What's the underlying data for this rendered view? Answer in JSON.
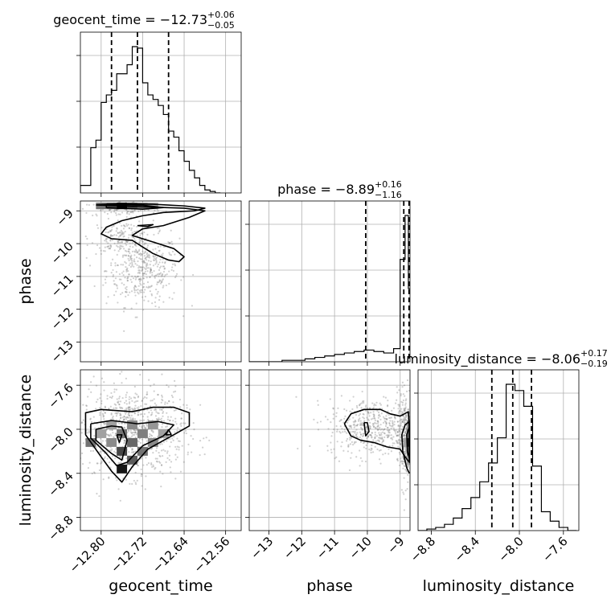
{
  "chart_data": {
    "type": "corner",
    "parameters": [
      "geocent_time",
      "phase",
      "luminosity_distance"
    ],
    "axis_labels": {
      "x": [
        "geocent_time",
        "phase",
        "luminosity_distance"
      ],
      "y": [
        "phase",
        "luminosity_distance"
      ]
    },
    "titles": [
      {
        "param": "geocent_time",
        "text": "geocent_time = −12.73",
        "plus": "+0.06",
        "minus": "−0.05"
      },
      {
        "param": "phase",
        "text": "phase = −8.89",
        "plus": "+0.16",
        "minus": "−1.16"
      },
      {
        "param": "luminosity_distance",
        "text": "luminosity_distance = −8.06",
        "plus": "+0.17",
        "minus": "−0.19"
      }
    ],
    "ranges": {
      "geocent_time": [
        -12.84,
        -12.53
      ],
      "phase": [
        -13.6,
        -8.7
      ],
      "luminosity_distance": [
        -8.92,
        -7.46
      ]
    },
    "ticks": {
      "geocent_time": [
        -12.8,
        -12.72,
        -12.64,
        -12.56
      ],
      "phase": [
        -13,
        -12,
        -11,
        -10,
        -9
      ],
      "luminosity_distance": [
        -8.8,
        -8.4,
        -8.0,
        -7.6
      ]
    },
    "tick_labels": {
      "geocent_time": [
        "−12.80",
        "−12.72",
        "−12.64",
        "−12.56"
      ],
      "phase": [
        "−13",
        "−12",
        "−11",
        "−10",
        "−9"
      ],
      "luminosity_distance": [
        "−8.8",
        "−8.4",
        "−8.0",
        "−7.6"
      ]
    },
    "quantiles": {
      "geocent_time": [
        -12.78,
        -12.73,
        -12.67
      ],
      "phase": [
        -10.05,
        -8.89,
        -8.73
      ],
      "luminosity_distance": [
        -8.25,
        -8.06,
        -7.89
      ]
    },
    "histograms": {
      "geocent_time": {
        "edges": [
          -12.84,
          -12.83,
          -12.82,
          -12.81,
          -12.8,
          -12.79,
          -12.78,
          -12.77,
          -12.76,
          -12.75,
          -12.74,
          -12.73,
          -12.72,
          -12.71,
          -12.7,
          -12.69,
          -12.68,
          -12.67,
          -12.66,
          -12.65,
          -12.64,
          -12.63,
          -12.62,
          -12.61,
          -12.6,
          -12.59,
          -12.58,
          -12.57
        ],
        "counts": [
          0.05,
          0.05,
          0.3,
          0.35,
          0.6,
          0.65,
          0.68,
          0.79,
          0.79,
          0.85,
          0.97,
          0.96,
          0.73,
          0.65,
          0.62,
          0.58,
          0.52,
          0.41,
          0.37,
          0.28,
          0.21,
          0.15,
          0.1,
          0.05,
          0.02,
          0.01,
          0.0
        ]
      },
      "phase": {
        "edges": [
          -13.6,
          -12.6,
          -12.2,
          -11.9,
          -11.6,
          -11.3,
          -11.0,
          -10.7,
          -10.4,
          -10.1,
          -9.8,
          -9.5,
          -9.2,
          -9.0,
          -8.85,
          -8.75,
          -8.7
        ],
        "counts": [
          0.0,
          0.01,
          0.01,
          0.02,
          0.03,
          0.04,
          0.05,
          0.06,
          0.07,
          0.08,
          0.07,
          0.06,
          0.09,
          0.7,
          1.0,
          0.5
        ]
      },
      "luminosity_distance": {
        "edges": [
          -8.92,
          -8.84,
          -8.76,
          -8.68,
          -8.6,
          -8.52,
          -8.44,
          -8.36,
          -8.28,
          -8.2,
          -8.12,
          -8.04,
          -7.96,
          -7.88,
          -7.8,
          -7.72,
          -7.64,
          -7.56,
          -7.48
        ],
        "counts": [
          0.0,
          0.01,
          0.02,
          0.04,
          0.08,
          0.14,
          0.21,
          0.31,
          0.43,
          0.59,
          0.93,
          0.89,
          0.79,
          0.41,
          0.12,
          0.06,
          0.02,
          0.0
        ]
      }
    },
    "contour_fills": [
      {
        "x": "geocent_time",
        "y": "phase",
        "cells": [
          [
            -12.8,
            -8.85,
            0.5
          ],
          [
            -12.78,
            -8.85,
            0.6
          ],
          [
            -12.76,
            -8.85,
            1.0
          ],
          [
            -12.74,
            -8.85,
            0.6
          ],
          [
            -12.72,
            -8.85,
            0.4
          ],
          [
            -12.7,
            -8.85,
            0.25
          ]
        ]
      },
      {
        "x": "geocent_time",
        "y": "luminosity_distance",
        "cells": [
          [
            -12.82,
            -8.12,
            0.5
          ],
          [
            -12.8,
            -8.04,
            0.3
          ],
          [
            -12.78,
            -7.96,
            0.3
          ],
          [
            -12.78,
            -8.12,
            0.4
          ],
          [
            -12.76,
            -8.04,
            0.5
          ],
          [
            -12.76,
            -8.2,
            0.7
          ],
          [
            -12.76,
            -8.36,
            0.9
          ],
          [
            -12.74,
            -7.96,
            0.4
          ],
          [
            -12.74,
            -8.12,
            0.55
          ],
          [
            -12.74,
            -8.28,
            0.6
          ],
          [
            -12.72,
            -8.04,
            0.45
          ],
          [
            -12.72,
            -8.2,
            0.5
          ],
          [
            -12.7,
            -7.96,
            0.35
          ],
          [
            -12.7,
            -8.12,
            0.4
          ],
          [
            -12.68,
            -8.04,
            0.3
          ]
        ]
      },
      {
        "x": "phase",
        "y": "luminosity_distance",
        "cells": [
          [
            -8.75,
            -8.04,
            0.5
          ],
          [
            -8.75,
            -8.12,
            0.9
          ],
          [
            -8.75,
            -8.2,
            0.55
          ],
          [
            -8.75,
            -7.96,
            0.35
          ],
          [
            -8.75,
            -8.28,
            0.3
          ],
          [
            -8.85,
            -8.12,
            0.3
          ]
        ]
      }
    ],
    "contour_lines": [
      {
        "x": "geocent_time",
        "y": "phase",
        "paths": [
          [
            [
              -12.81,
              -8.82
            ],
            [
              -12.76,
              -8.78
            ],
            [
              -12.7,
              -8.8
            ],
            [
              -12.64,
              -8.85
            ],
            [
              -12.6,
              -8.92
            ],
            [
              -12.62,
              -9.0
            ],
            [
              -12.68,
              -9.05
            ],
            [
              -12.72,
              -9.15
            ],
            [
              -12.76,
              -9.3
            ],
            [
              -12.79,
              -9.5
            ],
            [
              -12.8,
              -9.7
            ],
            [
              -12.78,
              -9.85
            ],
            [
              -12.74,
              -9.9
            ],
            [
              -12.72,
              -10.1
            ],
            [
              -12.7,
              -10.3
            ],
            [
              -12.67,
              -10.5
            ],
            [
              -12.65,
              -10.55
            ],
            [
              -12.64,
              -10.4
            ],
            [
              -12.66,
              -10.15
            ],
            [
              -12.7,
              -9.95
            ],
            [
              -12.74,
              -9.75
            ],
            [
              -12.72,
              -9.55
            ],
            [
              -12.68,
              -9.45
            ],
            [
              -12.63,
              -9.2
            ],
            [
              -12.6,
              -9.0
            ],
            [
              -12.64,
              -8.92
            ],
            [
              -12.72,
              -8.88
            ],
            [
              -12.81,
              -8.82
            ]
          ],
          [
            [
              -12.79,
              -8.8
            ],
            [
              -12.72,
              -8.83
            ],
            [
              -12.68,
              -8.9
            ],
            [
              -12.72,
              -8.95
            ],
            [
              -12.79,
              -8.9
            ],
            [
              -12.79,
              -8.8
            ]
          ],
          [
            [
              -12.73,
              -9.45
            ],
            [
              -12.7,
              -9.42
            ],
            [
              -12.71,
              -9.48
            ],
            [
              -12.73,
              -9.45
            ]
          ]
        ]
      },
      {
        "x": "geocent_time",
        "y": "luminosity_distance",
        "paths": [
          [
            [
              -12.83,
              -8.05
            ],
            [
              -12.83,
              -7.85
            ],
            [
              -12.8,
              -7.82
            ],
            [
              -12.74,
              -7.84
            ],
            [
              -12.7,
              -7.8
            ],
            [
              -12.66,
              -7.8
            ],
            [
              -12.63,
              -7.85
            ],
            [
              -12.63,
              -7.97
            ],
            [
              -12.66,
              -8.05
            ],
            [
              -12.71,
              -8.18
            ],
            [
              -12.74,
              -8.34
            ],
            [
              -12.76,
              -8.48
            ],
            [
              -12.78,
              -8.38
            ],
            [
              -12.8,
              -8.25
            ],
            [
              -12.83,
              -8.05
            ]
          ],
          [
            [
              -12.82,
              -7.95
            ],
            [
              -12.78,
              -7.92
            ],
            [
              -12.73,
              -7.95
            ],
            [
              -12.69,
              -7.93
            ],
            [
              -12.66,
              -7.96
            ],
            [
              -12.68,
              -8.06
            ],
            [
              -12.72,
              -8.15
            ],
            [
              -12.75,
              -8.3
            ],
            [
              -12.77,
              -8.33
            ],
            [
              -12.79,
              -8.22
            ],
            [
              -12.82,
              -8.08
            ],
            [
              -12.82,
              -7.95
            ]
          ],
          [
            [
              -12.81,
              -8.0
            ],
            [
              -12.78,
              -7.97
            ],
            [
              -12.76,
              -7.98
            ],
            [
              -12.75,
              -8.1
            ],
            [
              -12.76,
              -8.28
            ],
            [
              -12.78,
              -8.22
            ],
            [
              -12.81,
              -8.1
            ],
            [
              -12.81,
              -8.0
            ]
          ],
          [
            [
              -12.77,
              -8.05
            ],
            [
              -12.76,
              -8.05
            ],
            [
              -12.765,
              -8.12
            ],
            [
              -12.77,
              -8.05
            ]
          ],
          [
            [
              -12.67,
              -8.0
            ],
            [
              -12.665,
              -8.05
            ],
            [
              -12.675,
              -8.05
            ],
            [
              -12.67,
              -8.0
            ]
          ]
        ]
      },
      {
        "x": "phase",
        "y": "luminosity_distance",
        "paths": [
          [
            [
              -10.7,
              -7.95
            ],
            [
              -10.5,
              -7.86
            ],
            [
              -10.1,
              -7.82
            ],
            [
              -9.6,
              -7.82
            ],
            [
              -9.3,
              -7.86
            ],
            [
              -9.0,
              -7.88
            ],
            [
              -8.75,
              -7.84
            ],
            [
              -8.72,
              -8.0
            ],
            [
              -8.72,
              -8.3
            ],
            [
              -8.85,
              -8.25
            ],
            [
              -9.0,
              -8.18
            ],
            [
              -9.4,
              -8.16
            ],
            [
              -9.8,
              -8.12
            ],
            [
              -10.2,
              -8.1
            ],
            [
              -10.5,
              -8.06
            ],
            [
              -10.7,
              -7.95
            ]
          ],
          [
            [
              -8.72,
              -7.93
            ],
            [
              -8.85,
              -7.96
            ],
            [
              -8.95,
              -8.05
            ],
            [
              -8.92,
              -8.2
            ],
            [
              -8.8,
              -8.35
            ],
            [
              -8.72,
              -8.4
            ]
          ],
          [
            [
              -8.72,
              -7.98
            ],
            [
              -8.8,
              -8.05
            ],
            [
              -8.78,
              -8.2
            ],
            [
              -8.72,
              -8.26
            ]
          ],
          [
            [
              -10.1,
              -7.94
            ],
            [
              -10.0,
              -7.94
            ],
            [
              -9.95,
              -8.02
            ],
            [
              -10.05,
              -8.06
            ],
            [
              -10.1,
              -7.94
            ]
          ]
        ]
      }
    ]
  }
}
